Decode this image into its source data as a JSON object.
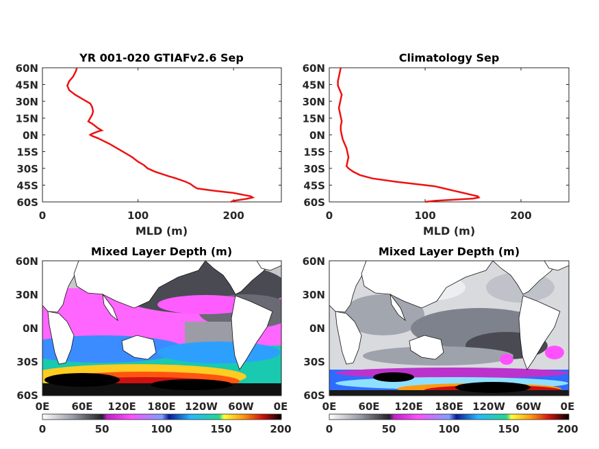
{
  "chart_data": [
    {
      "type": "line",
      "title": "YR 001-020 GTIAFv2.6 Sep",
      "xlabel": "MLD (m)",
      "ylabel": "",
      "xlim": [
        0,
        250
      ],
      "ylim": [
        -60,
        60
      ],
      "x_ticks": [
        "0",
        "100",
        "200"
      ],
      "y_ticks": [
        "60N",
        "45N",
        "30N",
        "15N",
        "0N",
        "15S",
        "30S",
        "45S",
        "60S"
      ],
      "series": [
        {
          "color": "#ee1111",
          "lat": [
            60,
            57,
            52,
            48,
            44,
            40,
            36,
            32,
            28,
            25,
            21,
            18,
            15,
            12,
            10,
            8,
            6,
            4,
            3,
            1,
            0,
            -1,
            -3,
            -5,
            -8,
            -12,
            -16,
            -20,
            -24,
            -27,
            -30,
            -33,
            -35,
            -37,
            -39,
            -42,
            -44,
            -46,
            -48,
            -50,
            -52,
            -54,
            -55,
            -56,
            -57,
            -58,
            -59,
            -60
          ],
          "mld": [
            36,
            35,
            32,
            28,
            26,
            28,
            34,
            42,
            50,
            52,
            53,
            52,
            50,
            48,
            52,
            55,
            58,
            62,
            58,
            52,
            50,
            52,
            58,
            63,
            70,
            78,
            86,
            94,
            100,
            106,
            110,
            118,
            125,
            132,
            140,
            150,
            155,
            158,
            162,
            180,
            200,
            212,
            218,
            220,
            215,
            208,
            200,
            197
          ]
        }
      ]
    },
    {
      "type": "line",
      "title": "Climatology Sep",
      "xlabel": "MLD (m)",
      "ylabel": "",
      "xlim": [
        0,
        250
      ],
      "ylim": [
        -60,
        60
      ],
      "x_ticks": [
        "0",
        "100",
        "200"
      ],
      "y_ticks": [
        "60N",
        "45N",
        "30N",
        "15N",
        "0N",
        "15S",
        "30S",
        "45S",
        "60S"
      ],
      "series": [
        {
          "color": "#ee1111",
          "lat": [
            60,
            56,
            52,
            48,
            44,
            40,
            36,
            32,
            28,
            24,
            20,
            16,
            12,
            8,
            4,
            0,
            -4,
            -8,
            -12,
            -16,
            -20,
            -24,
            -28,
            -30,
            -33,
            -36,
            -39,
            -42,
            -44,
            -46,
            -48,
            -50,
            -52,
            -54,
            -55,
            -56,
            -57,
            -58,
            -59,
            -60
          ],
          "mld": [
            12,
            11,
            10,
            9,
            9,
            11,
            13,
            12,
            11,
            10,
            11,
            12,
            13,
            12,
            12,
            13,
            14,
            16,
            18,
            19,
            20,
            19,
            18,
            20,
            25,
            32,
            45,
            70,
            90,
            110,
            120,
            130,
            140,
            150,
            155,
            156,
            150,
            130,
            110,
            100
          ]
        }
      ]
    },
    {
      "type": "heatmap",
      "title": "Mixed Layer Depth (m)",
      "x_ticks": [
        "0E",
        "60E",
        "120E",
        "180E",
        "120W",
        "60W",
        "0E"
      ],
      "y_ticks": [
        "60N",
        "30N",
        "0N",
        "30S",
        "60S"
      ],
      "colorbar_ticks": [
        "0",
        "50",
        "100",
        "150",
        "200"
      ],
      "colorbar_range": [
        0,
        200
      ]
    },
    {
      "type": "heatmap",
      "title": "Mixed Layer Depth (m)",
      "x_ticks": [
        "0E",
        "60E",
        "120E",
        "180E",
        "120W",
        "60W",
        "0E"
      ],
      "y_ticks": [
        "60N",
        "30N",
        "0N",
        "30S",
        "60S"
      ],
      "colorbar_ticks": [
        "0",
        "50",
        "100",
        "150",
        "200"
      ],
      "colorbar_range": [
        0,
        200
      ]
    }
  ]
}
